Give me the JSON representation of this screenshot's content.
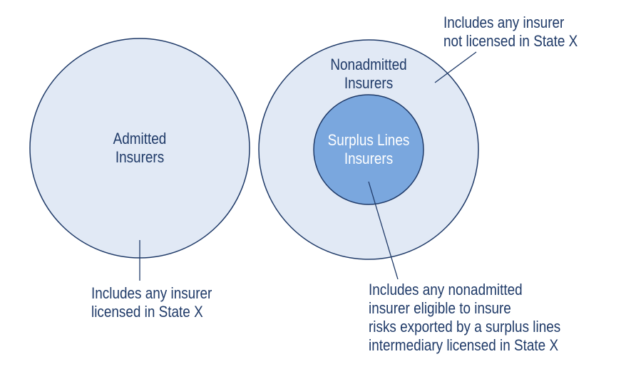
{
  "colors": {
    "outer_fill": "#e1e9f5",
    "inner_fill": "#7aa7de",
    "stroke": "#1f3a68",
    "text": "#1f3a68",
    "inner_text": "#ffffff"
  },
  "circles": {
    "admitted": {
      "title_line1": "Admitted",
      "title_line2": "Insurers"
    },
    "nonadmitted": {
      "title_line1": "Nonadmitted",
      "title_line2": "Insurers"
    },
    "surplus_lines": {
      "title_line1": "Surplus Lines",
      "title_line2": "Insurers"
    }
  },
  "annotations": {
    "nonadmitted": {
      "line1": "Includes any insurer",
      "line2": "not licensed in State X"
    },
    "admitted": {
      "line1": "Includes any insurer",
      "line2": "licensed in State X"
    },
    "surplus_lines": {
      "line1": "Includes any nonadmitted",
      "line2": "insurer eligible to insure",
      "line3": "risks exported by a surplus lines",
      "line4": "intermediary licensed in State X"
    }
  }
}
